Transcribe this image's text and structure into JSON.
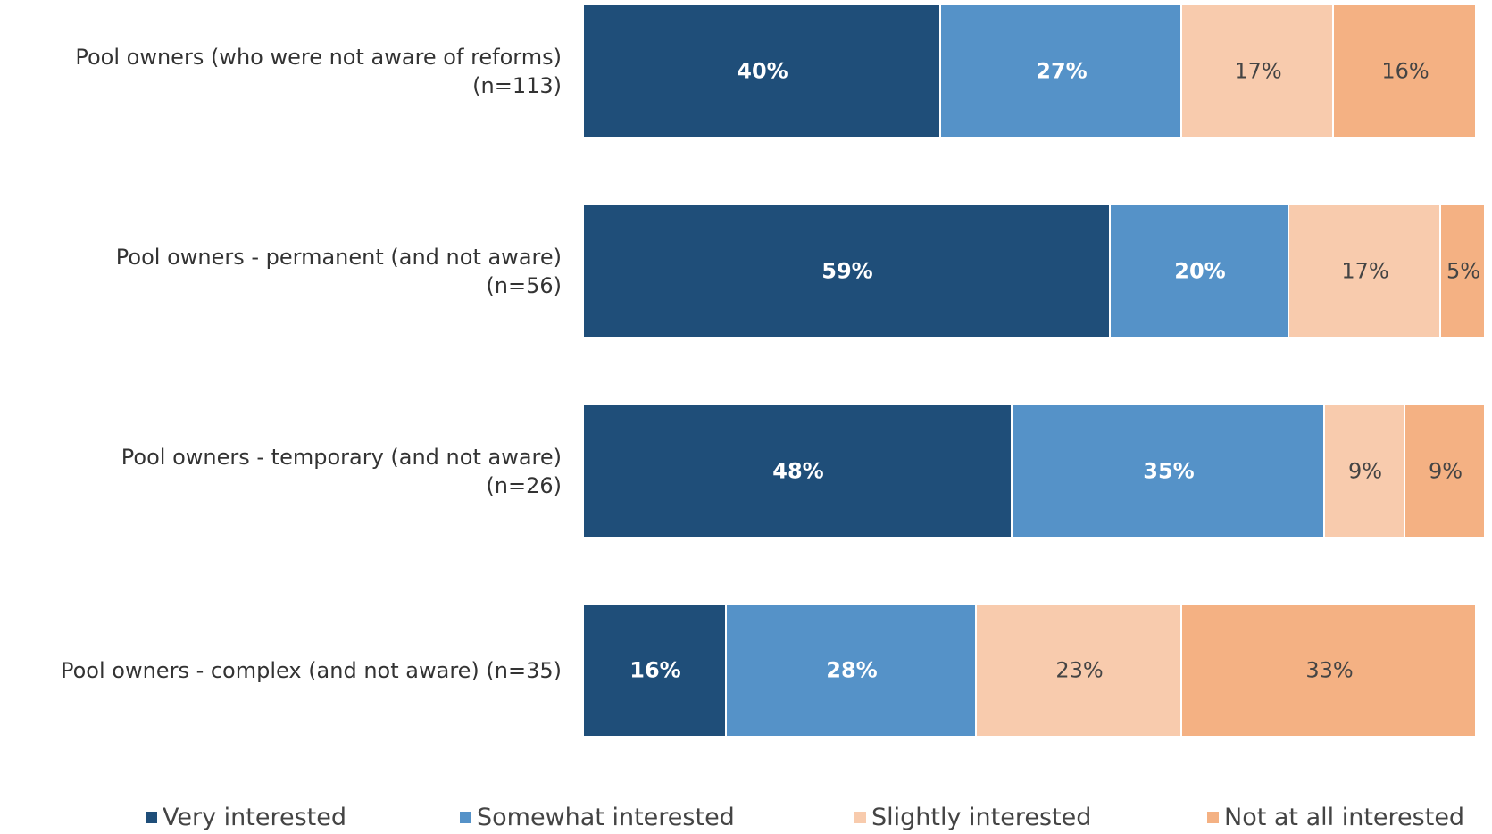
{
  "chart_data": {
    "type": "stacked-bar-horizontal",
    "categories": [
      "Pool owners (who were not aware of reforms)\n(n=113)",
      "Pool owners - permanent (and not aware)\n(n=56)",
      "Pool owners - temporary (and not aware)\n(n=26)",
      "Pool owners - complex (and not aware) (n=35)"
    ],
    "series": [
      {
        "name": "Very interested",
        "color": "#1f4e79",
        "values": [
          40,
          59,
          48,
          16
        ],
        "value_labels": [
          "40%",
          "59%",
          "48%",
          "16%"
        ]
      },
      {
        "name": "Somewhat interested",
        "color": "#5592c8",
        "values": [
          27,
          20,
          35,
          28
        ],
        "value_labels": [
          "27%",
          "20%",
          "35%",
          "28%"
        ]
      },
      {
        "name": "Slightly interested",
        "color": "#f8cbad",
        "values": [
          17,
          17,
          9,
          23
        ],
        "value_labels": [
          "17%",
          "17%",
          "9%",
          "23%"
        ]
      },
      {
        "name": "Not at all interested",
        "color": "#f4b183",
        "values": [
          16,
          5,
          9,
          33
        ],
        "value_labels": [
          "16%",
          "5%",
          "9%",
          "33%"
        ]
      }
    ],
    "xlim": [
      0,
      100
    ],
    "legend": "bottom"
  }
}
